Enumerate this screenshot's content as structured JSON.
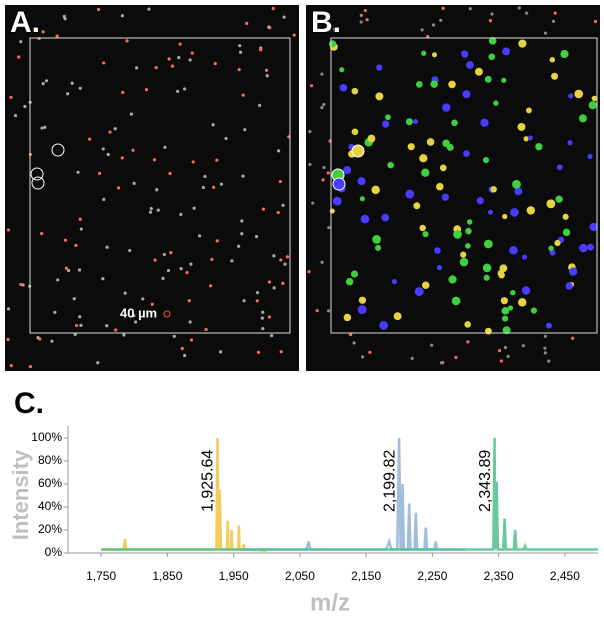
{
  "panels": {
    "a": "A.",
    "b": "B.",
    "scale_bar": "40 µm"
  },
  "chart_data": {
    "type": "line",
    "panel": "C.",
    "xlabel": "m/z",
    "ylabel": "Intensity",
    "xlim": [
      1700,
      2500
    ],
    "xticks": [
      {
        "value": 1750,
        "label": "1,750"
      },
      {
        "value": 1850,
        "label": "1,850"
      },
      {
        "value": 1950,
        "label": "1,950"
      },
      {
        "value": 2050,
        "label": "2,050"
      },
      {
        "value": 2150,
        "label": "2,150"
      },
      {
        "value": 2250,
        "label": "2,250"
      },
      {
        "value": 2350,
        "label": "2,350"
      },
      {
        "value": 2450,
        "label": "2,450"
      }
    ],
    "ylim": [
      0,
      100
    ],
    "yticks": [
      {
        "value": 0,
        "label": "0%"
      },
      {
        "value": 20,
        "label": "20%"
      },
      {
        "value": 40,
        "label": "40%"
      },
      {
        "value": 60,
        "label": "60%"
      },
      {
        "value": 80,
        "label": "80%"
      },
      {
        "value": 100,
        "label": "100%"
      }
    ],
    "grid": false,
    "series": [
      {
        "color": "#f5c242",
        "x": [
          1750,
          1784,
          1786,
          1788,
          1920,
          1924,
          1925.64,
          1927,
          1929,
          1931,
          1940,
          1941,
          1942,
          1946,
          1947,
          1948,
          1957,
          1958,
          1959,
          1964,
          1965,
          1966,
          2000
        ],
        "values": [
          3,
          3,
          12,
          3,
          3,
          4,
          100,
          4,
          55,
          3,
          3,
          28,
          3,
          3,
          20,
          3,
          3,
          24,
          3,
          3,
          8,
          3,
          2
        ]
      },
      {
        "color": "#8fb0d8",
        "x": [
          1960,
          2060,
          2063,
          2066,
          2180,
          2185,
          2188,
          2197,
          2199.82,
          2202,
          2204,
          2205,
          2207,
          2213,
          2215,
          2217,
          2223,
          2225,
          2227,
          2238,
          2240,
          2242,
          2253,
          2255,
          2257,
          2300
        ],
        "values": [
          3,
          3,
          10,
          3,
          3,
          10,
          3,
          3,
          100,
          3,
          3,
          60,
          3,
          3,
          43,
          3,
          3,
          35,
          3,
          3,
          22,
          3,
          3,
          10,
          3,
          3
        ]
      },
      {
        "color": "#4dbf8a",
        "x": [
          1750,
          2340,
          2342,
          2343.89,
          2345,
          2347,
          2349,
          2357,
          2359,
          2361,
          2373,
          2375,
          2377,
          2388,
          2390,
          2392,
          2500
        ],
        "values": [
          3,
          3,
          3,
          100,
          3,
          62,
          3,
          3,
          30,
          3,
          3,
          20,
          3,
          3,
          6,
          3,
          3
        ]
      }
    ],
    "annotations": [
      {
        "text": "1,925.64",
        "x": 1925.64
      },
      {
        "text": "2,199.82",
        "x": 2199.82
      },
      {
        "text": "2,343.89",
        "x": 2343.89
      }
    ]
  }
}
